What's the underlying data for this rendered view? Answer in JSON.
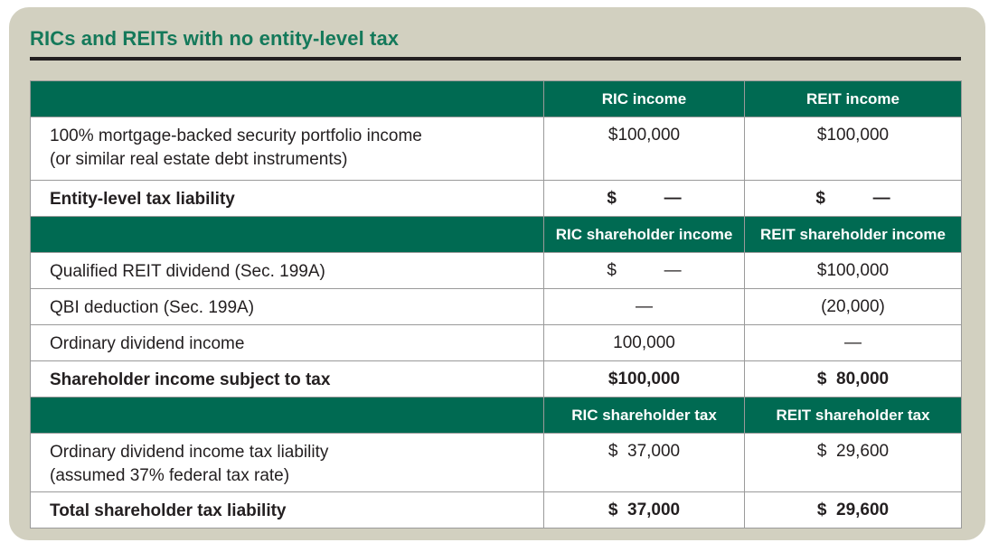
{
  "card": {
    "title": "RICs and REITs with no entity-level tax",
    "title_color": "#14795a",
    "background": "#d2d0c0",
    "rule_color": "#231f20"
  },
  "colors": {
    "header_green": "#006a52",
    "header_text": "#ffffff",
    "body_text": "#231f20",
    "grid_line": "#9a9a9a",
    "row_background": "#ffffff"
  },
  "table": {
    "sections": [
      {
        "header": [
          "",
          "RIC income",
          "REIT income"
        ],
        "rows": [
          {
            "label": "100% mortgage-backed security portfolio income\n(or similar real estate debt instruments)",
            "ric": "$100,000",
            "reit": "$100,000",
            "style": "regular"
          },
          {
            "label": "Entity-level tax liability",
            "ric": "$          —",
            "reit": "$          —",
            "style": "bold"
          }
        ]
      },
      {
        "header": [
          "",
          "RIC shareholder income",
          "REIT shareholder income"
        ],
        "rows": [
          {
            "label": "Qualified REIT dividend (Sec. 199A)",
            "ric": "$          —",
            "reit": "$100,000",
            "style": "regular"
          },
          {
            "label": "QBI deduction (Sec. 199A)",
            "ric": "—",
            "reit": "(20,000)",
            "style": "regular"
          },
          {
            "label": "Ordinary dividend income",
            "ric": "100,000",
            "reit": "—",
            "style": "regular"
          },
          {
            "label": "Shareholder income subject to tax",
            "ric": "$100,000",
            "reit": "$  80,000",
            "style": "bold"
          }
        ]
      },
      {
        "header": [
          "",
          "RIC shareholder tax",
          "REIT shareholder tax"
        ],
        "rows": [
          {
            "label": "Ordinary dividend income tax liability\n(assumed 37% federal tax rate)",
            "ric": "$  37,000",
            "reit": "$  29,600",
            "style": "regular"
          },
          {
            "label": "Total shareholder tax liability",
            "ric": "$  37,000",
            "reit": "$  29,600",
            "style": "bold"
          }
        ]
      }
    ]
  }
}
